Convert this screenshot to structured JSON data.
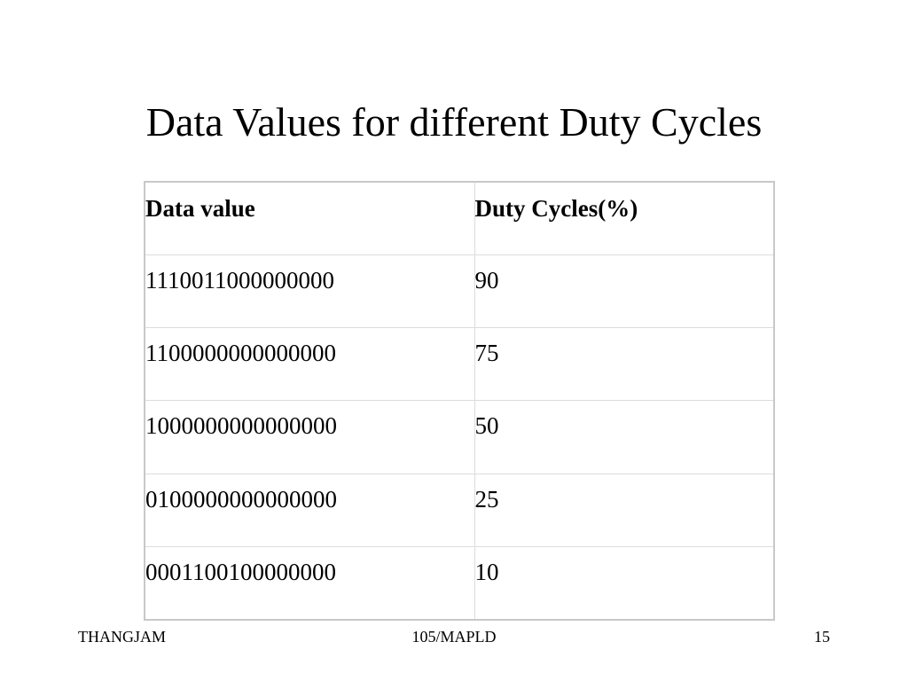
{
  "slide": {
    "title": "Data Values for different Duty Cycles"
  },
  "table": {
    "headers": [
      "Data value",
      "Duty Cycles(%)"
    ],
    "rows": [
      [
        "1110011000000000",
        "90"
      ],
      [
        "1100000000000000",
        "75"
      ],
      [
        "1000000000000000",
        "50"
      ],
      [
        "0100000000000000",
        "25"
      ],
      [
        "0001100100000000",
        "10"
      ]
    ]
  },
  "footer": {
    "left": "THANGJAM",
    "center": "105/MAPLD",
    "right": "15"
  }
}
